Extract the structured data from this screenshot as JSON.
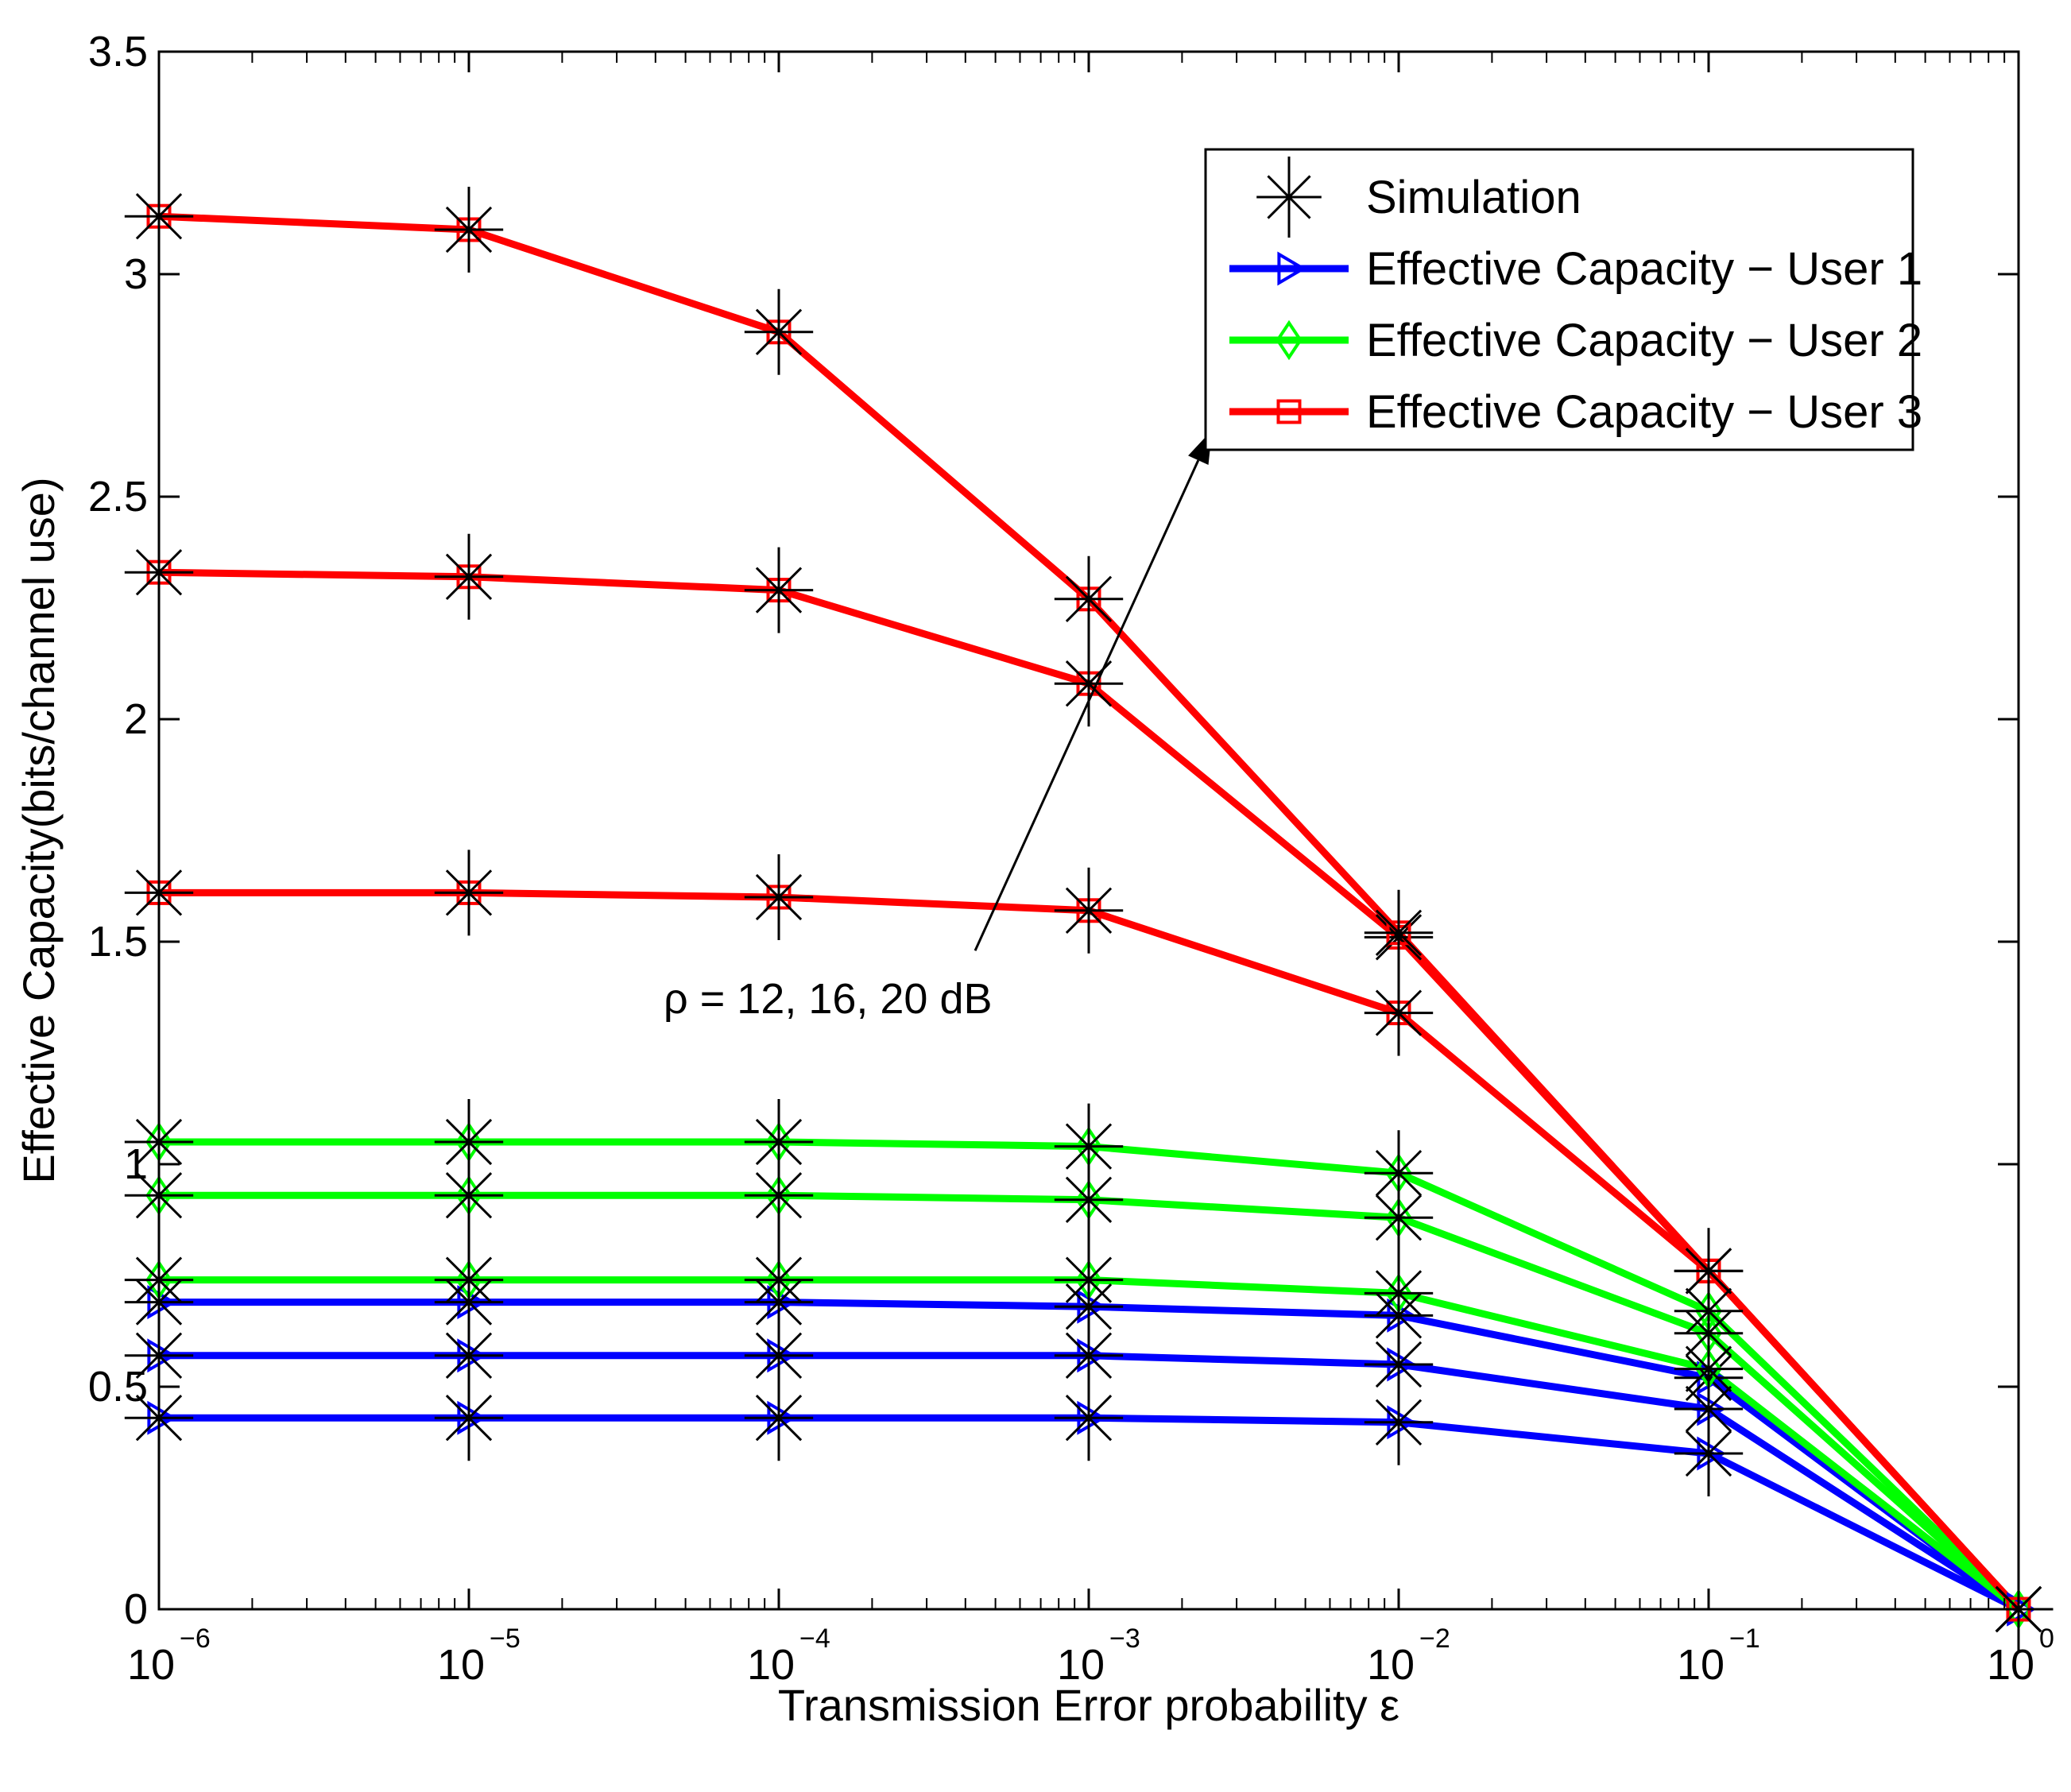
{
  "chart_data": {
    "type": "line",
    "title": "",
    "xlabel": "Transmission Error probability ε",
    "ylabel": "Effective Capacity(bits/channel use)",
    "xscale": "log",
    "x": [
      1e-06,
      1e-05,
      0.0001,
      0.001,
      0.01,
      0.1,
      1
    ],
    "xlim": [
      1e-06,
      1
    ],
    "ylim": [
      0,
      3.5
    ],
    "x_tick_labels": [
      {
        "base": "10",
        "exp": "−6"
      },
      {
        "base": "10",
        "exp": "−5"
      },
      {
        "base": "10",
        "exp": "−4"
      },
      {
        "base": "10",
        "exp": "−3"
      },
      {
        "base": "10",
        "exp": "−2"
      },
      {
        "base": "10",
        "exp": "−1"
      },
      {
        "base": "10",
        "exp": "0"
      }
    ],
    "y_ticks": [
      0,
      0.5,
      1,
      1.5,
      2,
      2.5,
      3,
      3.5
    ],
    "y_tick_labels": [
      "0",
      "0.5",
      "1",
      "1.5",
      "2",
      "2.5",
      "3",
      "3.5"
    ],
    "grid": false,
    "legend_position": "top-right",
    "legend": [
      {
        "label": "Simulation",
        "marker": "asterisk",
        "color": "#000000",
        "line": false
      },
      {
        "label": "Effective Capacity − User 1",
        "marker": "triangle-right",
        "color": "#0000ff",
        "line": true
      },
      {
        "label": "Effective Capacity − User 2",
        "marker": "diamond",
        "color": "#00ff00",
        "line": true
      },
      {
        "label": "Effective Capacity − User 3",
        "marker": "square",
        "color": "#ff0000",
        "line": true
      }
    ],
    "series": [
      {
        "name": "Effective Capacity − User 1 (ρ = 12 dB)",
        "user": 1,
        "color": "#0000ff",
        "marker": "triangle-right",
        "values": [
          0.43,
          0.43,
          0.43,
          0.43,
          0.42,
          0.35,
          0
        ]
      },
      {
        "name": "Effective Capacity − User 1 (ρ = 16 dB)",
        "user": 1,
        "color": "#0000ff",
        "marker": "triangle-right",
        "values": [
          0.57,
          0.57,
          0.57,
          0.57,
          0.55,
          0.45,
          0
        ]
      },
      {
        "name": "Effective Capacity − User 1 (ρ = 20 dB)",
        "user": 1,
        "color": "#0000ff",
        "marker": "triangle-right",
        "values": [
          0.69,
          0.69,
          0.69,
          0.68,
          0.66,
          0.52,
          0
        ]
      },
      {
        "name": "Effective Capacity − User 2 (ρ = 12 dB)",
        "user": 2,
        "color": "#00ff00",
        "marker": "diamond",
        "values": [
          0.74,
          0.74,
          0.74,
          0.74,
          0.71,
          0.54,
          0
        ]
      },
      {
        "name": "Effective Capacity − User 2 (ρ = 16 dB)",
        "user": 2,
        "color": "#00ff00",
        "marker": "diamond",
        "values": [
          0.93,
          0.93,
          0.93,
          0.92,
          0.88,
          0.62,
          0
        ]
      },
      {
        "name": "Effective Capacity − User 2 (ρ = 20 dB)",
        "user": 2,
        "color": "#00ff00",
        "marker": "diamond",
        "values": [
          1.05,
          1.05,
          1.05,
          1.04,
          0.98,
          0.67,
          0
        ]
      },
      {
        "name": "Effective Capacity − User 3 (ρ = 12 dB)",
        "user": 3,
        "color": "#ff0000",
        "marker": "square",
        "values": [
          1.61,
          1.61,
          1.6,
          1.57,
          1.34,
          0.76,
          0
        ]
      },
      {
        "name": "Effective Capacity − User 3 (ρ = 16 dB)",
        "user": 3,
        "color": "#ff0000",
        "marker": "square",
        "values": [
          2.33,
          2.32,
          2.29,
          2.08,
          1.51,
          0.76,
          0
        ]
      },
      {
        "name": "Effective Capacity − User 3 (ρ = 20 dB)",
        "user": 3,
        "color": "#ff0000",
        "marker": "square",
        "values": [
          3.13,
          3.1,
          2.87,
          2.27,
          1.52,
          0.76,
          0
        ]
      }
    ],
    "annotation": {
      "text": "ρ = 12, 16, 20 dB",
      "arrow_from": {
        "x": 0.00043,
        "y": 1.48
      },
      "arrow_to": {
        "x": 0.0025,
        "y": 2.65
      }
    }
  }
}
